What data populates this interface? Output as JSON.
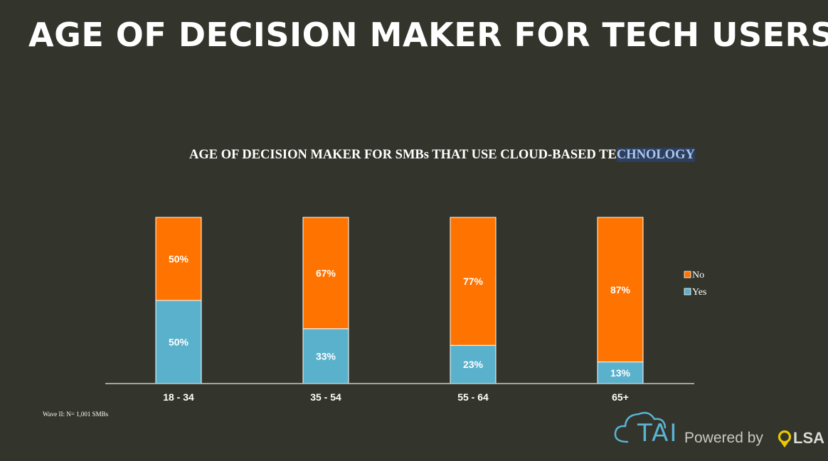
{
  "page": {
    "title": "AGE OF DECISION MAKER FOR TECH USERS",
    "footnote": "Wave II: N= 1,001 SMBs"
  },
  "brand": {
    "prefix": "TAI",
    "powered_by": "Powered by",
    "logo_text": "LSA",
    "cloud_icon": "cloud-icon",
    "pin_icon": "location-pin-icon"
  },
  "chart_data": {
    "type": "bar",
    "stacked": true,
    "title_main": "AGE OF DECISION MAKER FOR SMBs THAT USE CLOUD-BASED TE",
    "title_highlight": "CHNOLOGY",
    "categories": [
      "18 - 34",
      "35 - 54",
      "55 - 64",
      "65+"
    ],
    "series": [
      {
        "name": "Yes",
        "values": [
          50,
          33,
          23,
          13
        ],
        "labels": [
          "50%",
          "33%",
          "23%",
          "13%"
        ],
        "color": "#5ab1cc"
      },
      {
        "name": "No",
        "values": [
          50,
          67,
          77,
          87
        ],
        "labels": [
          "50%",
          "67%",
          "77%",
          "87%"
        ],
        "color": "#ff7300"
      }
    ],
    "ylim": [
      0,
      100
    ],
    "grid": false,
    "legend_position": "right",
    "legend_order": [
      "No",
      "Yes"
    ]
  }
}
